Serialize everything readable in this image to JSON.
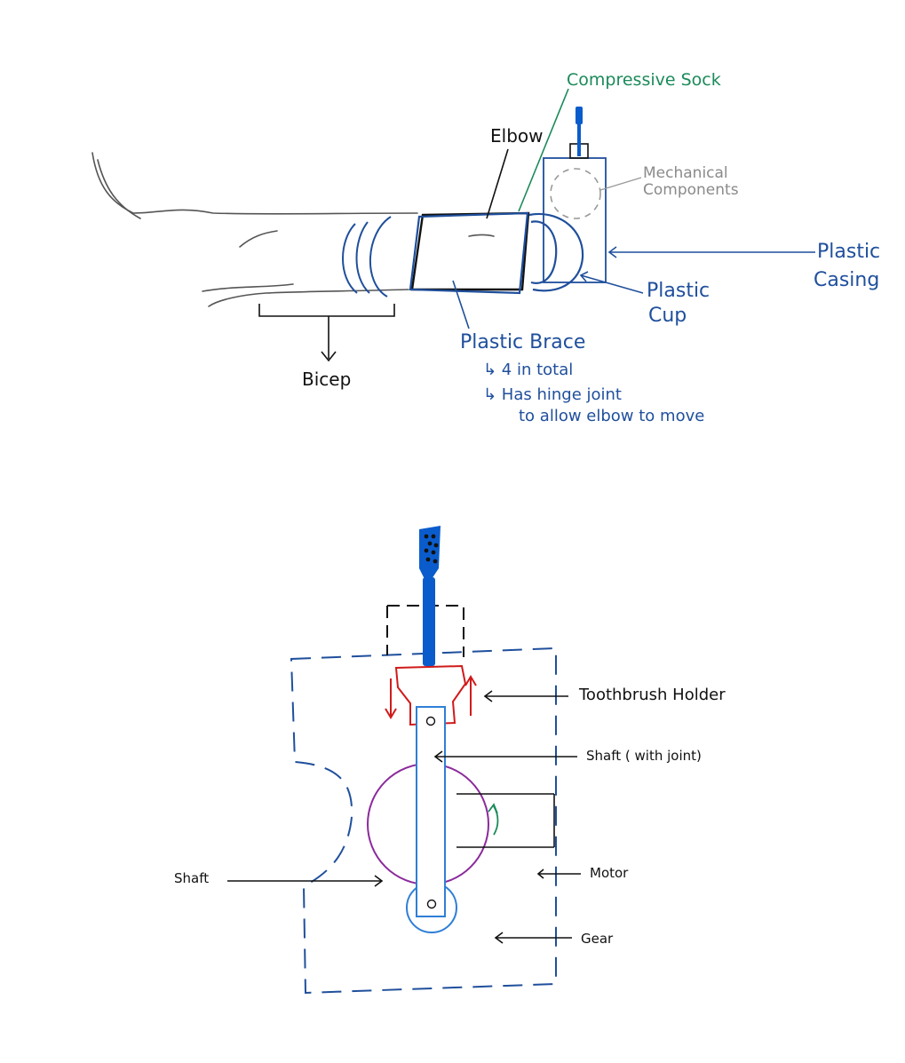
{
  "top_diagram": {
    "labels": {
      "compressive_sock": "Compressive Sock",
      "elbow": "Elbow",
      "mechanical_components_line1": "Mechanical",
      "mechanical_components_line2": "Components",
      "plastic_casing_line1": "Plastic",
      "plastic_casing_line2": "Casing",
      "plastic_cup_line1": "Plastic",
      "plastic_cup_line2": "Cup",
      "plastic_brace": "Plastic Brace",
      "brace_note_1": "↳ 4 in total",
      "brace_note_2_line1": "↳ Has hinge joint",
      "brace_note_2_line2": "to allow elbow to move",
      "bicep": "Bicep"
    }
  },
  "bottom_diagram": {
    "labels": {
      "toothbrush_holder": "Toothbrush Holder",
      "shaft_with_joint": "Shaft ( with joint)",
      "shaft": "Shaft",
      "motor": "Motor",
      "gear": "Gear"
    }
  },
  "colors": {
    "outline_black": "#111111",
    "brace_blue": "#1f4f9c",
    "toothbrush_blue": "#0a5ccc",
    "shaft_blue": "#2f7fd6",
    "holder_red": "#d11a1a",
    "motor_purple": "#8b2a9c",
    "sock_green": "#1b8a5a",
    "mechanical_gray": "#9a9a9a",
    "arm_gray": "#555555"
  }
}
